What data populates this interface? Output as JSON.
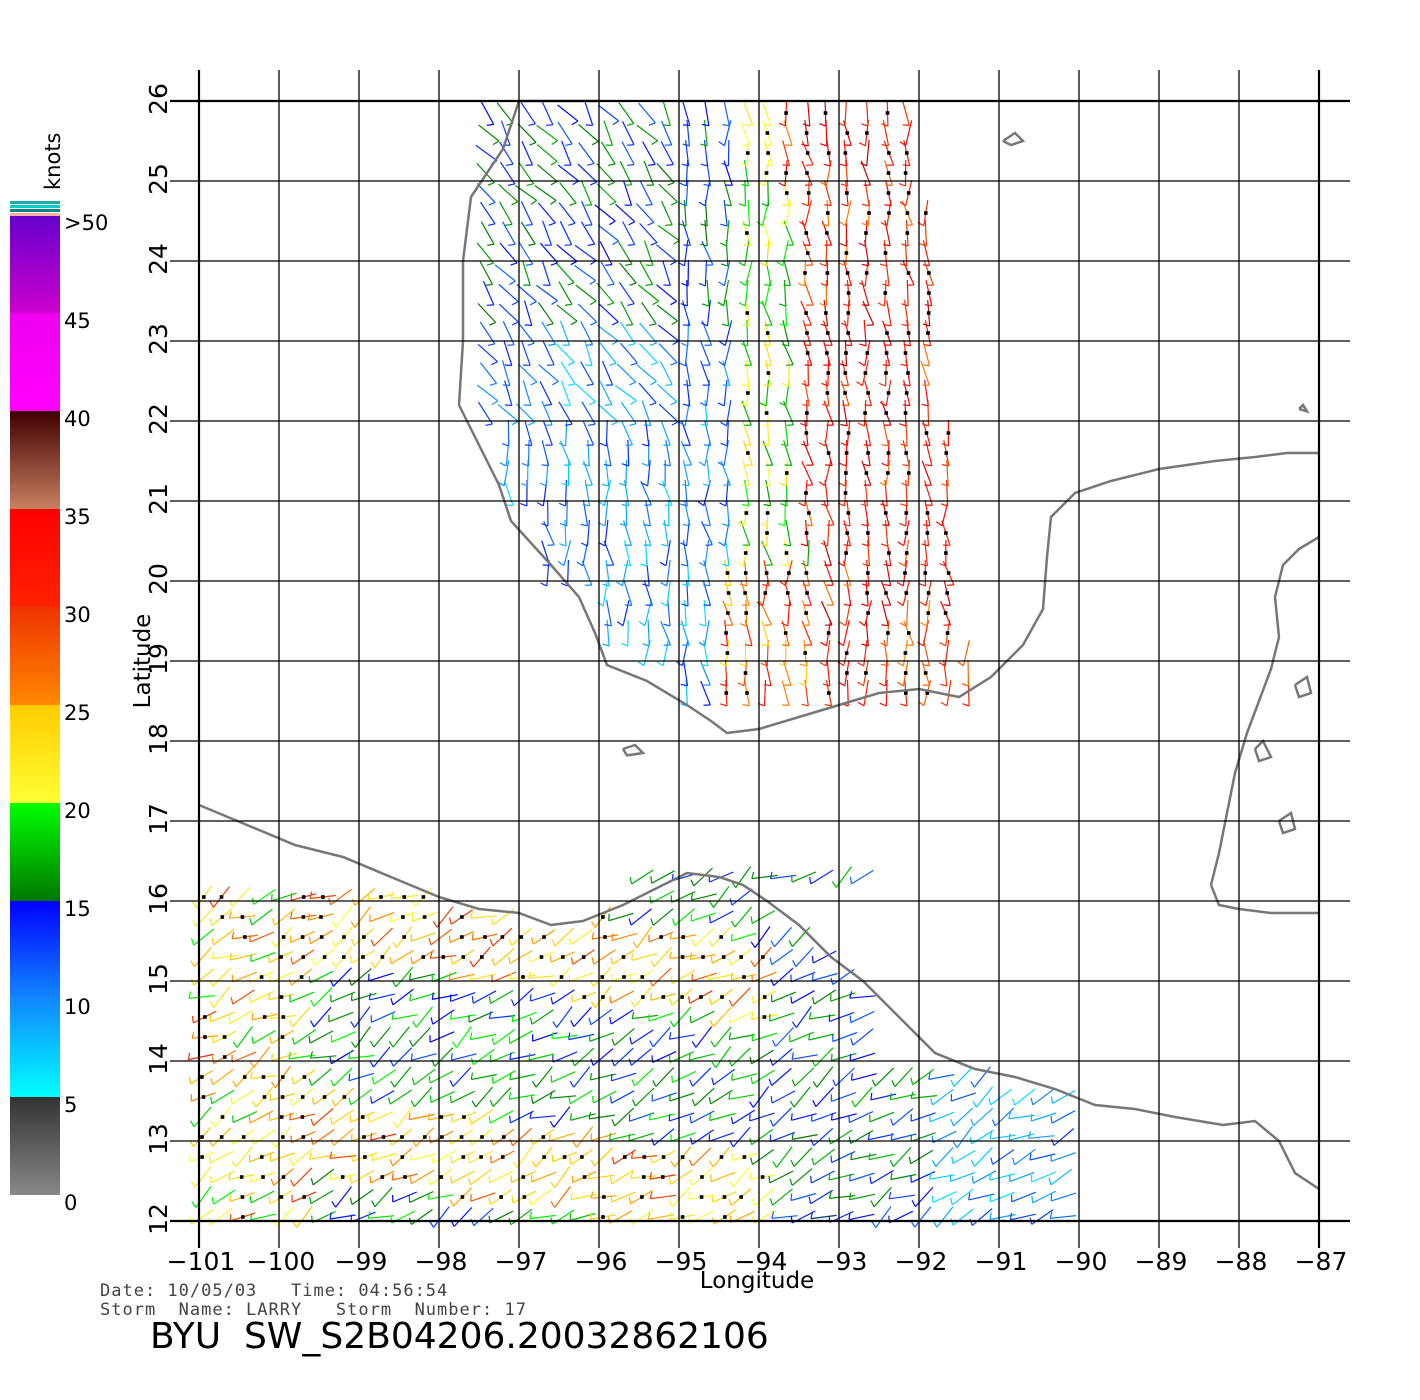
{
  "colorbar": {
    "unit_label": "knots",
    "labels": [
      ">50",
      "45",
      "40",
      "35",
      "30",
      "25",
      "20",
      "15",
      "10",
      "5",
      "0"
    ],
    "bands": [
      {
        "from": 0,
        "to": 5,
        "top": "#333333",
        "bottom": "#888888"
      },
      {
        "from": 5,
        "to": 10,
        "top": "#1188ff",
        "bottom": "#00ffff"
      },
      {
        "from": 10,
        "to": 15,
        "top": "#0000ff",
        "bottom": "#1188ff"
      },
      {
        "from": 15,
        "to": 20,
        "top": "#00ff00",
        "bottom": "#007700"
      },
      {
        "from": 20,
        "to": 25,
        "top": "#ffcc00",
        "bottom": "#ffff33"
      },
      {
        "from": 25,
        "to": 30,
        "top": "#ee3300",
        "bottom": "#ff8800"
      },
      {
        "from": 30,
        "to": 35,
        "top": "#ff0000",
        "bottom": "#ff2200"
      },
      {
        "from": 35,
        "to": 40,
        "top": "#400000",
        "bottom": "#c88060"
      },
      {
        "from": 40,
        "to": 45,
        "top": "#ee00ee",
        "bottom": "#ff00ff"
      },
      {
        "from": 45,
        "to": 50,
        "top": "#6600cc",
        "bottom": "#cc00cc"
      }
    ],
    "top_stripes": [
      "#ffb0a0",
      "#008888",
      "#00cccc",
      "#22aaaa"
    ]
  },
  "map": {
    "xlabel": "Longitude",
    "ylabel": "Latitude",
    "lon_range": [
      -101,
      -87
    ],
    "lat_range": [
      12,
      26
    ],
    "lon_ticks": [
      "-101",
      "-100",
      "-99",
      "-98",
      "-97",
      "-96",
      "-95",
      "-94",
      "-93",
      "-92",
      "-91",
      "-90",
      "-89",
      "-88",
      "-87"
    ],
    "lat_ticks": [
      "12",
      "13",
      "14",
      "15",
      "16",
      "17",
      "18",
      "19",
      "20",
      "21",
      "22",
      "23",
      "24",
      "25",
      "26"
    ],
    "grid": true,
    "coast_color": "#777777",
    "wind_barbs": "colored by wind speed (knots), gridded swaths over Gulf of Mexico and Gulf of Tehuantepec"
  },
  "info": {
    "line1": "Date: 10/05/03   Time: 04:56:54",
    "line2": "Storm  Name: LARRY   Storm  Number: 17",
    "title": "BYU  SW_S2B04206.20032862106"
  }
}
